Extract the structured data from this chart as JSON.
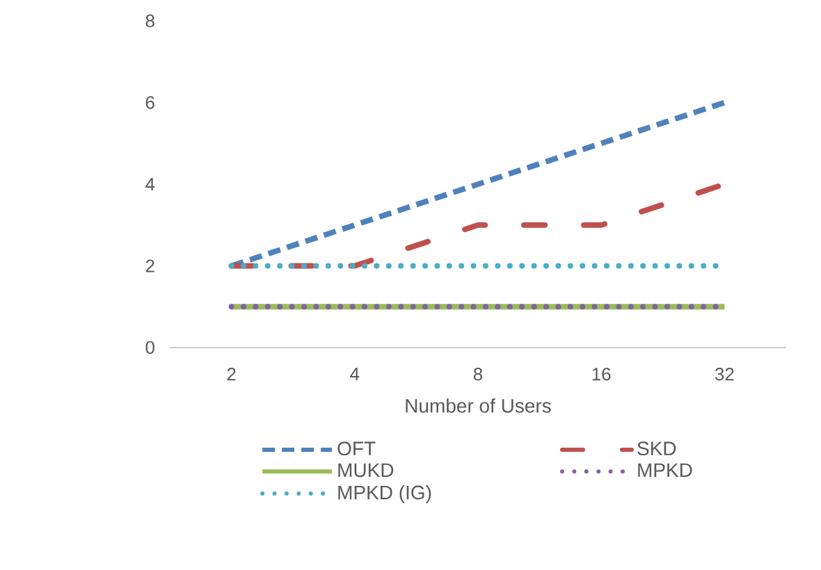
{
  "chart_data": {
    "type": "line",
    "xlabel": "Number of Users",
    "categories": [
      "2",
      "4",
      "8",
      "16",
      "32"
    ],
    "series": [
      {
        "name": "OFT",
        "color": "#4f81bd",
        "values": [
          2,
          3,
          4,
          5,
          6
        ],
        "line_style": "dashed"
      },
      {
        "name": "SKD",
        "color": "#c0504d",
        "values": [
          2,
          2,
          3,
          3,
          4
        ],
        "line_style": "dashdot"
      },
      {
        "name": "MUKD",
        "color": "#9bbb59",
        "values": [
          1,
          1,
          1,
          1,
          1
        ],
        "line_style": "solid"
      },
      {
        "name": "MPKD",
        "color": "#8064a2",
        "values": [
          1,
          1,
          1,
          1,
          1
        ],
        "line_style": "dotted"
      },
      {
        "name": "MPKD (IG)",
        "color": "#4bacc6",
        "values": [
          2,
          2,
          2,
          2,
          2
        ],
        "line_style": "dotted"
      }
    ],
    "ylim": [
      0,
      8
    ],
    "yticks": [
      0,
      2,
      4,
      6,
      8
    ],
    "grid": false,
    "legend": "bottom",
    "marker": "none"
  }
}
